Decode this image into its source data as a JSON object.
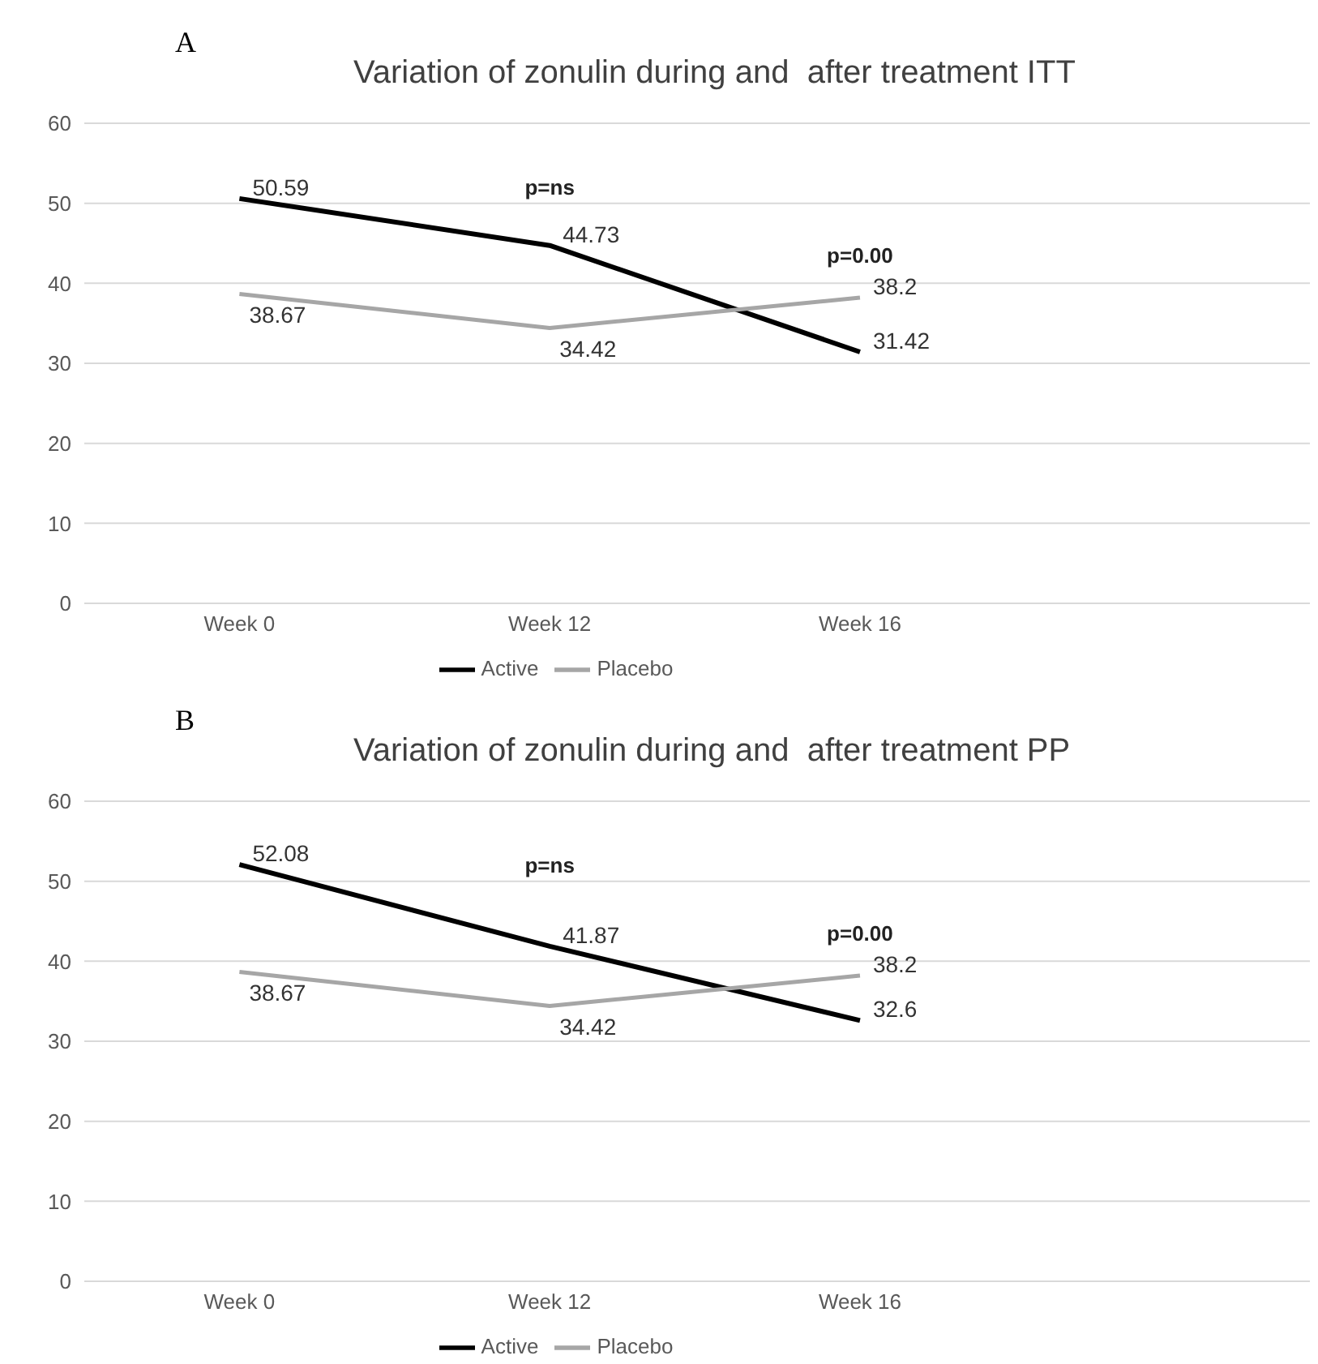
{
  "chart_data": [
    {
      "type": "line",
      "title": "Variation of zonulin during and  after treatment ITT",
      "categories": [
        "Week 0",
        "Week 12",
        "Week 16"
      ],
      "series": [
        {
          "name": "Active",
          "color": "#000000",
          "values": [
            50.59,
            44.73,
            31.42
          ]
        },
        {
          "name": "Placebo",
          "color": "#a6a6a6",
          "values": [
            38.67,
            34.42,
            38.2
          ]
        }
      ],
      "ylim": [
        0,
        60
      ],
      "yticks": [
        0,
        10,
        20,
        30,
        40,
        50,
        60
      ],
      "grid": "y",
      "legend": "bottom",
      "marker": "none",
      "line_style": "solid",
      "data_labels": true,
      "annotations": [
        "A",
        "p=ns",
        "p=0.00"
      ]
    },
    {
      "type": "line",
      "title": "Variation of zonulin during and  after treatment PP",
      "categories": [
        "Week 0",
        "Week 12",
        "Week 16"
      ],
      "series": [
        {
          "name": "Active",
          "color": "#000000",
          "values": [
            52.08,
            41.87,
            32.6
          ]
        },
        {
          "name": "Placebo",
          "color": "#a6a6a6",
          "values": [
            38.67,
            34.42,
            38.2
          ]
        }
      ],
      "ylim": [
        0,
        60
      ],
      "yticks": [
        0,
        10,
        20,
        30,
        40,
        50,
        60
      ],
      "grid": "y",
      "legend": "bottom",
      "marker": "none",
      "line_style": "solid",
      "data_labels": true,
      "annotations": [
        "B",
        "p=ns",
        "p=0.00"
      ]
    }
  ]
}
